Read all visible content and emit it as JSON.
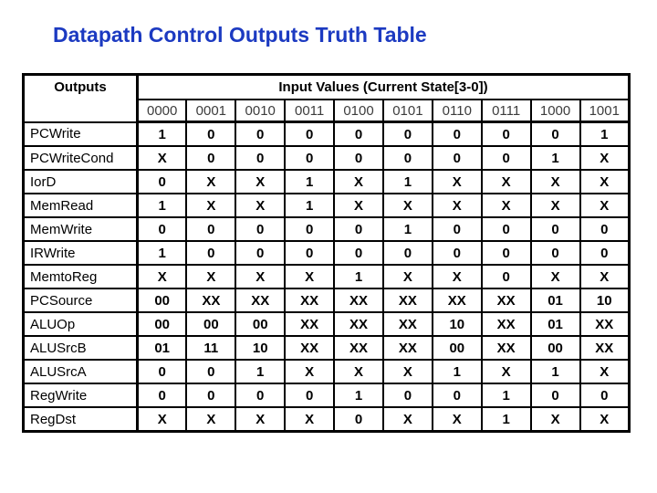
{
  "title": "Datapath Control Outputs Truth Table",
  "colors": {
    "title_blue": "#1c3ac1",
    "state_header_text": "#3c3c3c",
    "border": "#000000",
    "background": "#ffffff"
  },
  "table": {
    "outputs_header": "Outputs",
    "input_values_header": "Input Values (Current State[3-0])",
    "state_columns": [
      "0000",
      "0001",
      "0010",
      "0011",
      "0100",
      "0101",
      "0110",
      "0111",
      "1000",
      "1001"
    ],
    "rows": [
      {
        "label": "PCWrite",
        "values": [
          "1",
          "0",
          "0",
          "0",
          "0",
          "0",
          "0",
          "0",
          "0",
          "1"
        ]
      },
      {
        "label": "PCWriteCond",
        "values": [
          "X",
          "0",
          "0",
          "0",
          "0",
          "0",
          "0",
          "0",
          "1",
          "X"
        ]
      },
      {
        "label": "IorD",
        "values": [
          "0",
          "X",
          "X",
          "1",
          "X",
          "1",
          "X",
          "X",
          "X",
          "X"
        ]
      },
      {
        "label": "MemRead",
        "values": [
          "1",
          "X",
          "X",
          "1",
          "X",
          "X",
          "X",
          "X",
          "X",
          "X"
        ]
      },
      {
        "label": "MemWrite",
        "values": [
          "0",
          "0",
          "0",
          "0",
          "0",
          "1",
          "0",
          "0",
          "0",
          "0"
        ]
      },
      {
        "label": "IRWrite",
        "values": [
          "1",
          "0",
          "0",
          "0",
          "0",
          "0",
          "0",
          "0",
          "0",
          "0"
        ]
      },
      {
        "label": "MemtoReg",
        "values": [
          "X",
          "X",
          "X",
          "X",
          "1",
          "X",
          "X",
          "0",
          "X",
          "X"
        ]
      },
      {
        "label": "PCSource",
        "values": [
          "00",
          "XX",
          "XX",
          "XX",
          "XX",
          "XX",
          "XX",
          "XX",
          "01",
          "10"
        ]
      },
      {
        "label": "ALUOp",
        "values": [
          "00",
          "00",
          "00",
          "XX",
          "XX",
          "XX",
          "10",
          "XX",
          "01",
          "XX"
        ]
      },
      {
        "label": "ALUSrcB",
        "values": [
          "01",
          "11",
          "10",
          "XX",
          "XX",
          "XX",
          "00",
          "XX",
          "00",
          "XX"
        ]
      },
      {
        "label": "ALUSrcA",
        "values": [
          "0",
          "0",
          "1",
          "X",
          "X",
          "X",
          "1",
          "X",
          "1",
          "X"
        ]
      },
      {
        "label": "RegWrite",
        "values": [
          "0",
          "0",
          "0",
          "0",
          "1",
          "0",
          "0",
          "1",
          "0",
          "0"
        ]
      },
      {
        "label": "RegDst",
        "values": [
          "X",
          "X",
          "X",
          "X",
          "0",
          "X",
          "X",
          "1",
          "X",
          "X"
        ]
      }
    ]
  }
}
